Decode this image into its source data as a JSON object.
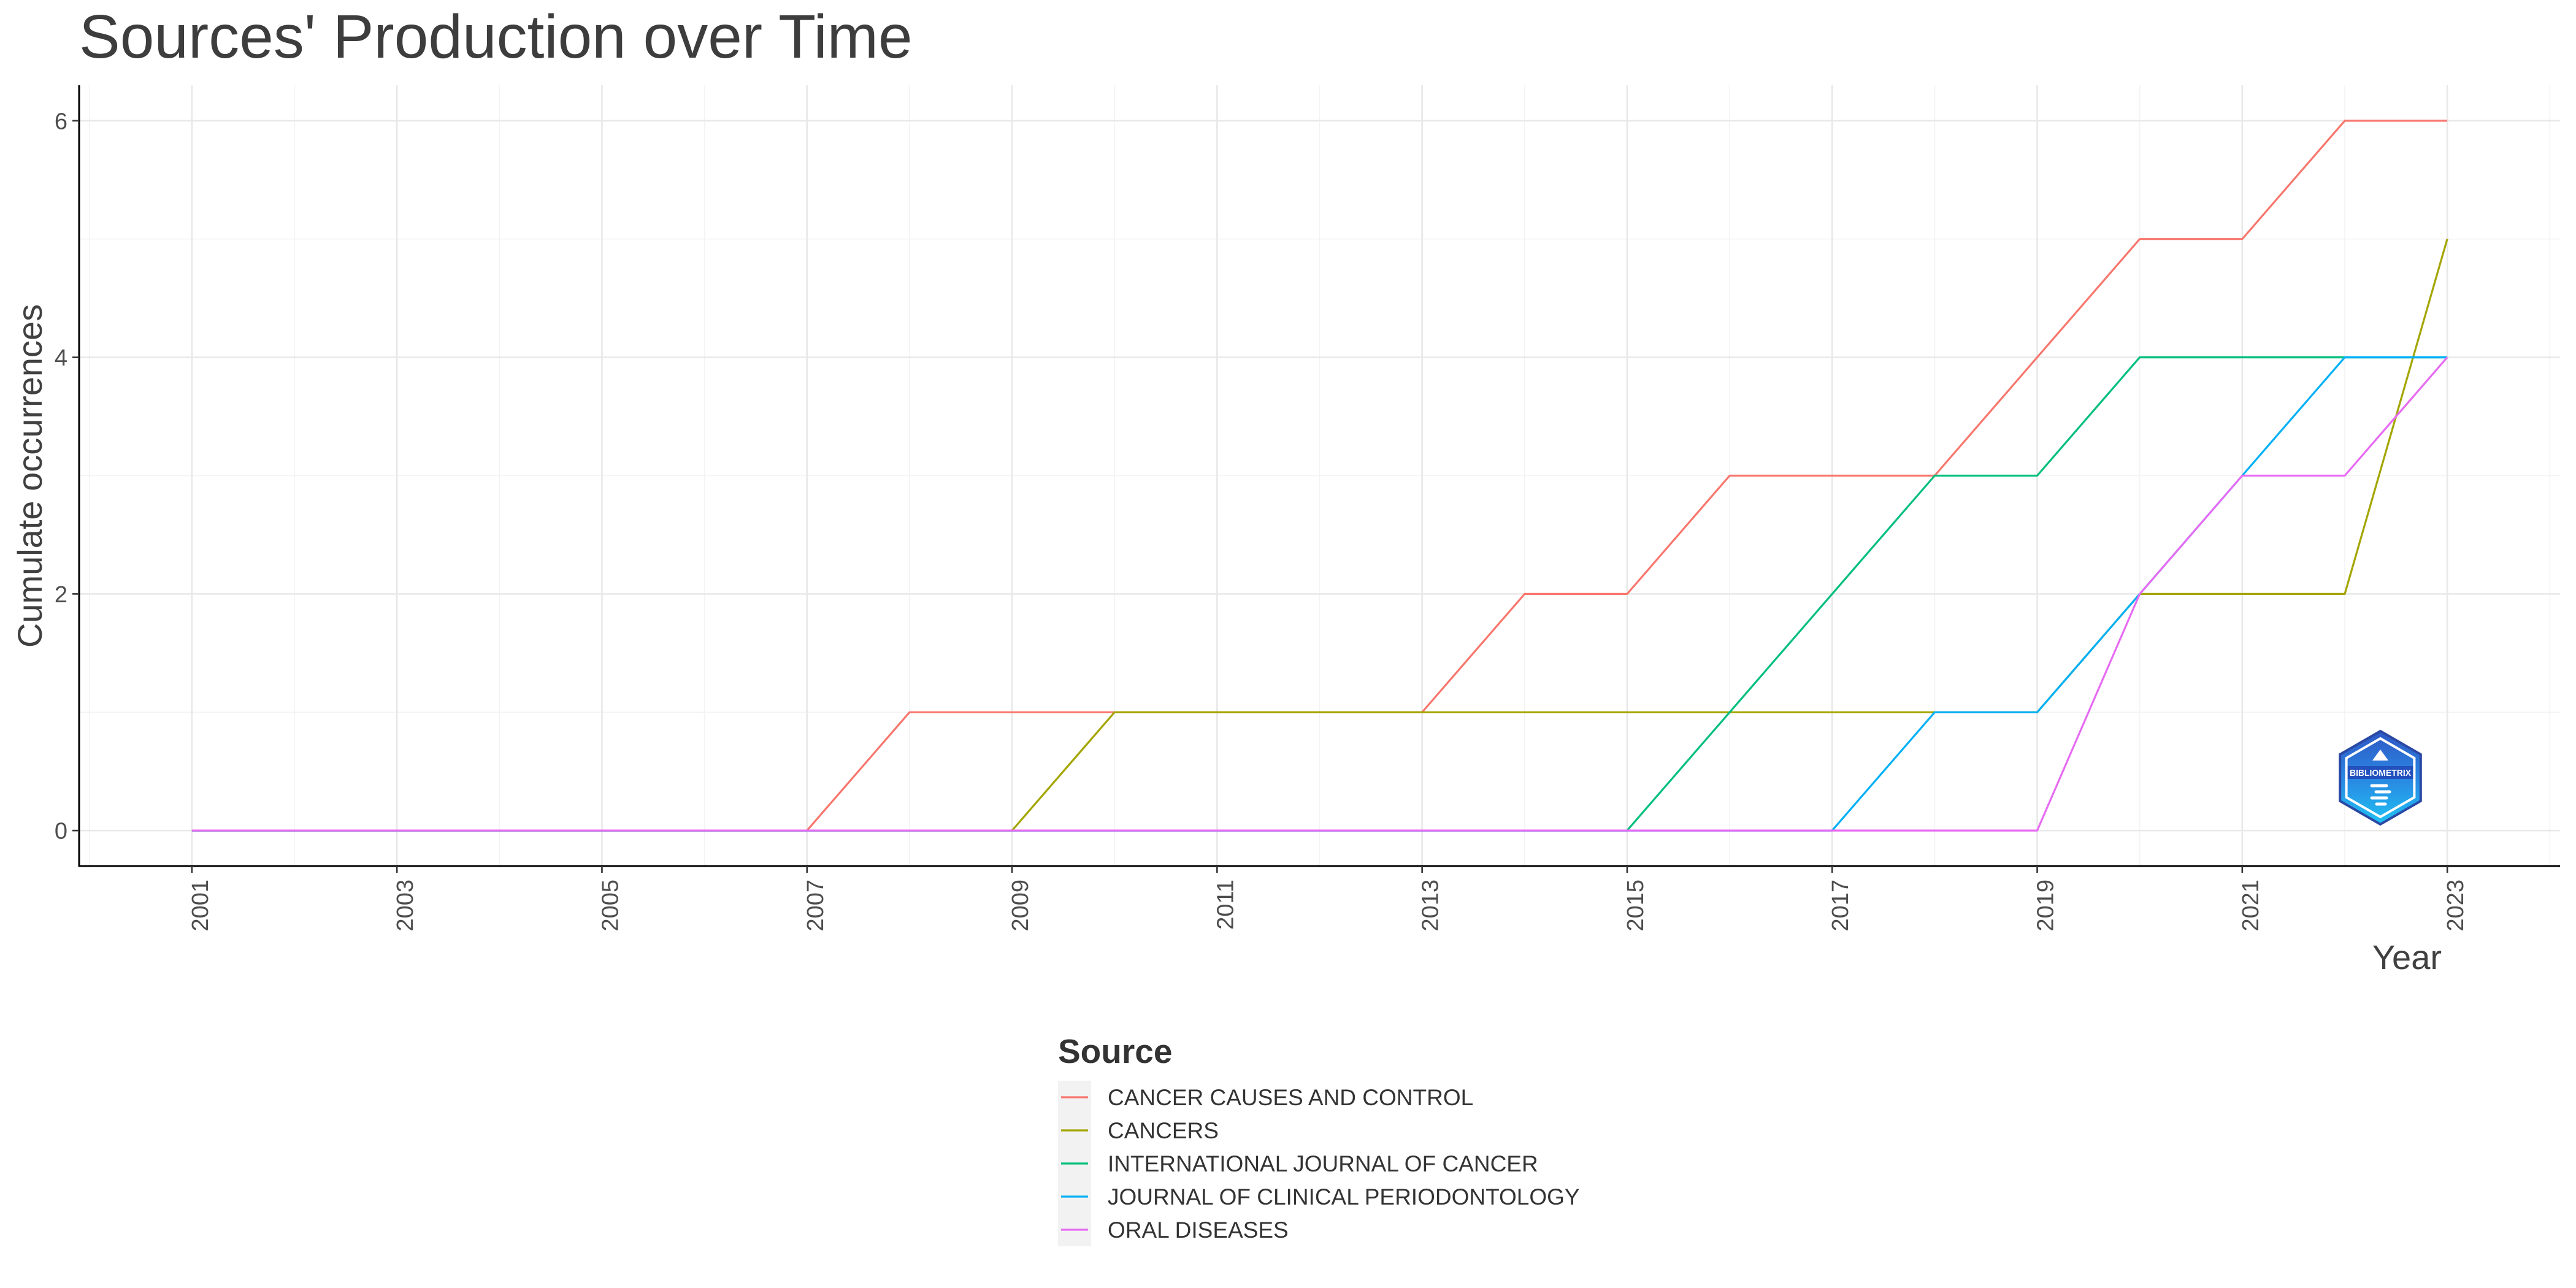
{
  "chart_data": {
    "type": "line",
    "title": "Sources' Production over Time",
    "xlabel": "Year",
    "ylabel": "Cumulate occurrences",
    "x": [
      2001,
      2002,
      2003,
      2004,
      2005,
      2006,
      2007,
      2008,
      2009,
      2010,
      2011,
      2012,
      2013,
      2014,
      2015,
      2016,
      2017,
      2018,
      2019,
      2020,
      2021,
      2022,
      2023
    ],
    "x_ticks": [
      "2001",
      "2003",
      "2005",
      "2007",
      "2009",
      "2011",
      "2013",
      "2015",
      "2017",
      "2019",
      "2021",
      "2023"
    ],
    "y_ticks": [
      "0",
      "2",
      "4",
      "6"
    ],
    "xlim": [
      1999.9,
      2024.1
    ],
    "ylim": [
      -0.3,
      6.3
    ],
    "grid": true,
    "legend": {
      "title": "Source",
      "position": "bottom"
    },
    "series": [
      {
        "name": "CANCER CAUSES AND CONTROL",
        "color": "#F8766D",
        "values": [
          0,
          0,
          0,
          0,
          0,
          0,
          0,
          1,
          1,
          1,
          1,
          1,
          1,
          2,
          2,
          3,
          3,
          3,
          4,
          5,
          5,
          6,
          6
        ]
      },
      {
        "name": "CANCERS",
        "color": "#A3A500",
        "values": [
          0,
          0,
          0,
          0,
          0,
          0,
          0,
          0,
          0,
          1,
          1,
          1,
          1,
          1,
          1,
          1,
          1,
          1,
          1,
          2,
          2,
          2,
          5
        ]
      },
      {
        "name": "INTERNATIONAL JOURNAL OF CANCER",
        "color": "#00BF7D",
        "values": [
          0,
          0,
          0,
          0,
          0,
          0,
          0,
          0,
          0,
          0,
          0,
          0,
          0,
          0,
          0,
          1,
          2,
          3,
          3,
          4,
          4,
          4,
          4
        ]
      },
      {
        "name": "JOURNAL OF CLINICAL PERIODONTOLOGY",
        "color": "#00B0F6",
        "values": [
          0,
          0,
          0,
          0,
          0,
          0,
          0,
          0,
          0,
          0,
          0,
          0,
          0,
          0,
          0,
          0,
          0,
          1,
          1,
          2,
          3,
          4,
          4
        ]
      },
      {
        "name": "ORAL DISEASES",
        "color": "#E76BF3",
        "values": [
          0,
          0,
          0,
          0,
          0,
          0,
          0,
          0,
          0,
          0,
          0,
          0,
          0,
          0,
          0,
          0,
          0,
          0,
          0,
          2,
          3,
          3,
          4
        ]
      }
    ]
  },
  "logo": {
    "text": "BIBLIOMETRIX"
  }
}
